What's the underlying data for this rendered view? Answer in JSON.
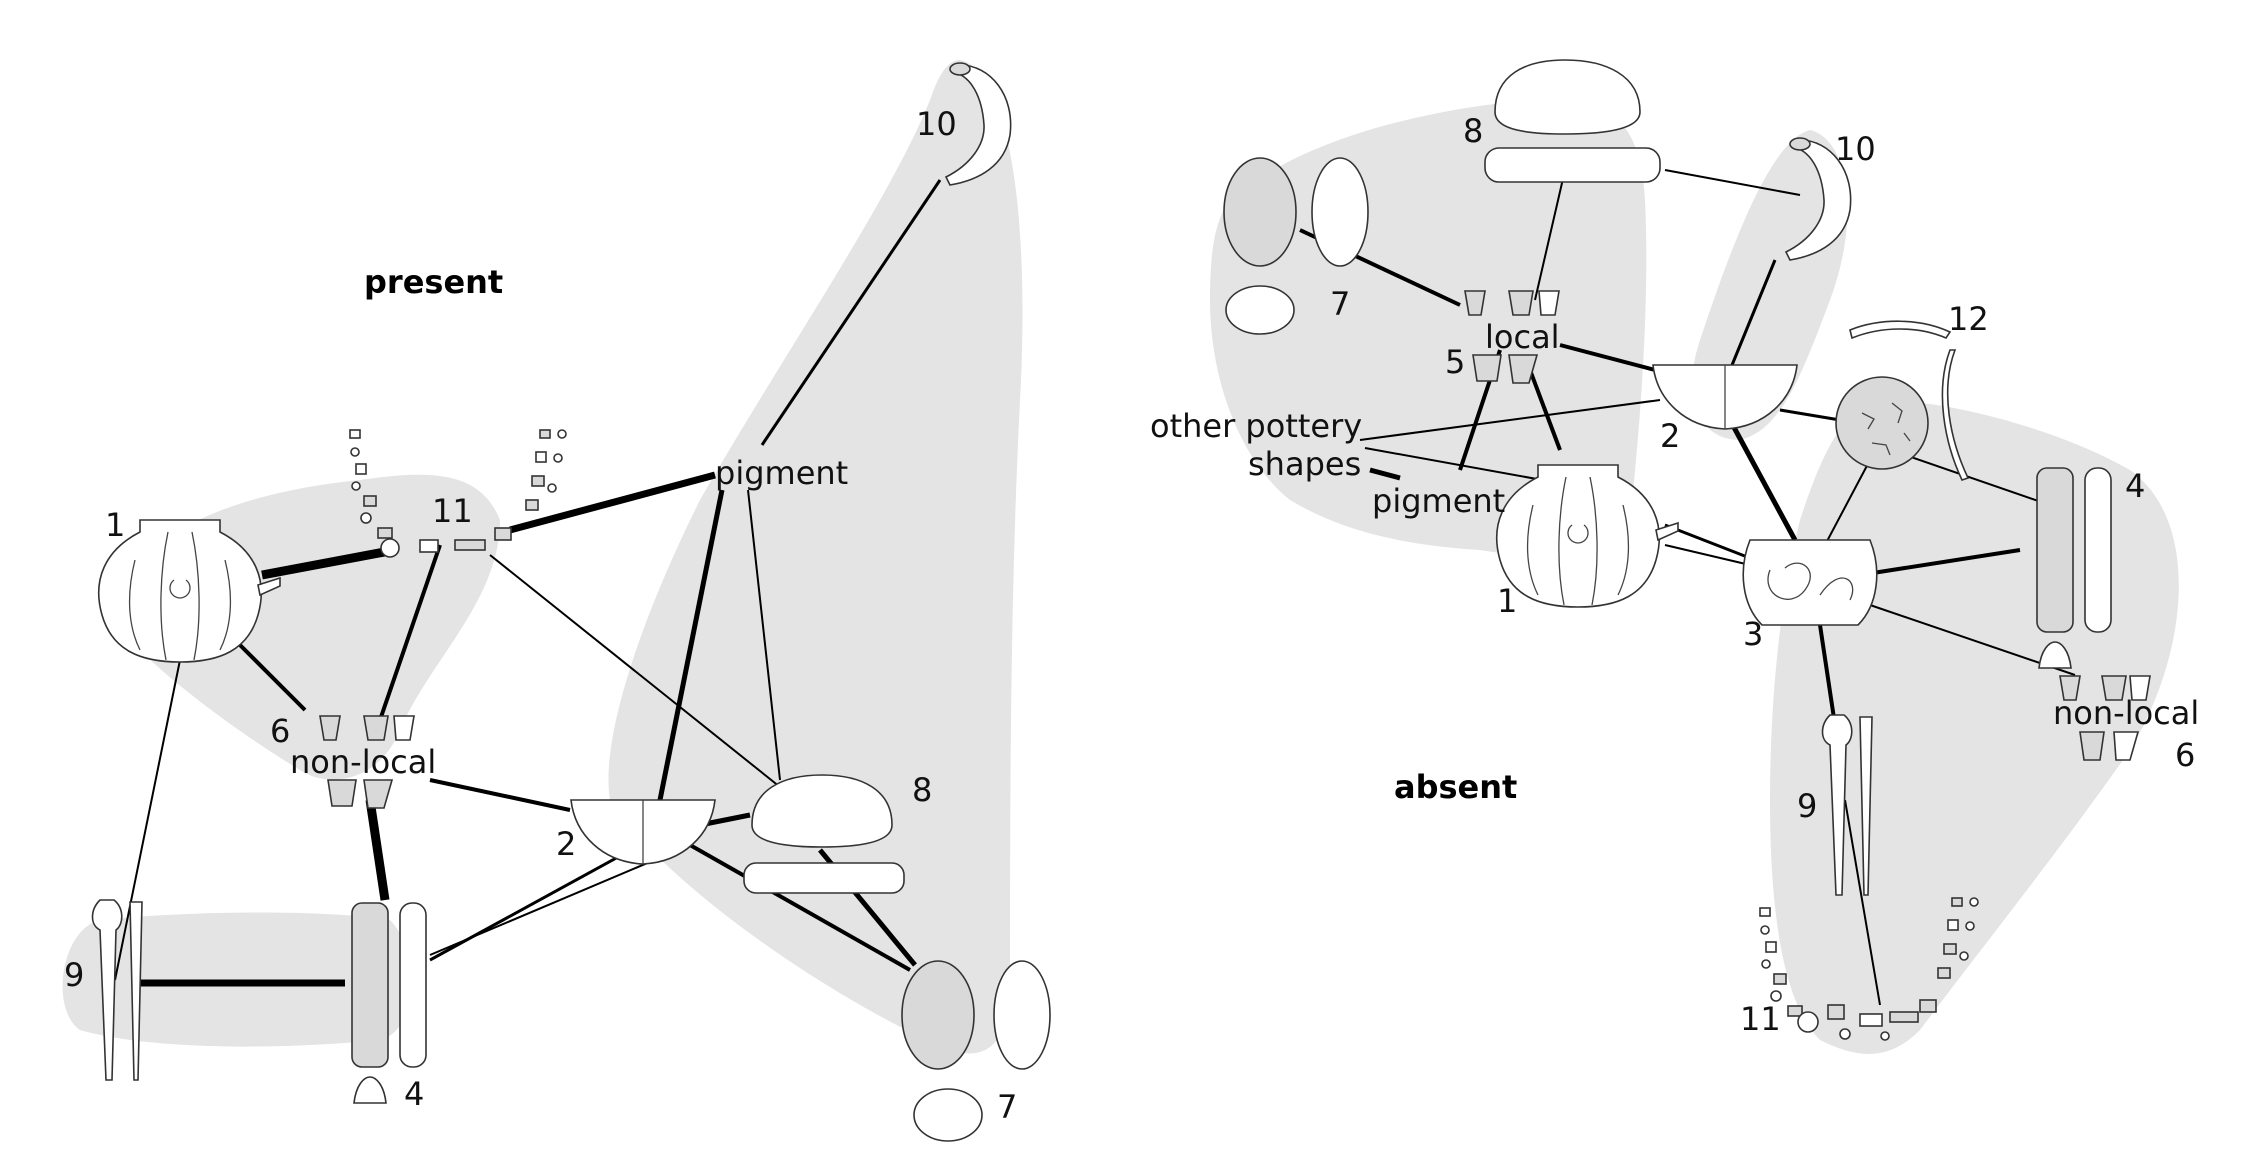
{
  "colors": {
    "hull": "#e4e4e4",
    "edge": "#000000",
    "background": "#ffffff"
  },
  "left_panel": {
    "title": "present",
    "labels": {
      "non_local": "non-local",
      "pigment": "pigment"
    },
    "numbers": {
      "n1": "1",
      "n2": "2",
      "n4": "4",
      "n6": "6",
      "n7": "7",
      "n8": "8",
      "n9": "9",
      "n10": "10",
      "n11": "11"
    }
  },
  "right_panel": {
    "title": "absent",
    "labels": {
      "local": "local",
      "non_local": "non-local",
      "pigment": "pigment",
      "other_pottery": "other pottery",
      "shapes": "shapes"
    },
    "numbers": {
      "n1": "1",
      "n2": "2",
      "n3": "3",
      "n4": "4",
      "n5": "5",
      "n6": "6",
      "n7": "7",
      "n8": "8",
      "n9": "9",
      "n10": "10",
      "n11": "11",
      "n12": "12"
    }
  }
}
